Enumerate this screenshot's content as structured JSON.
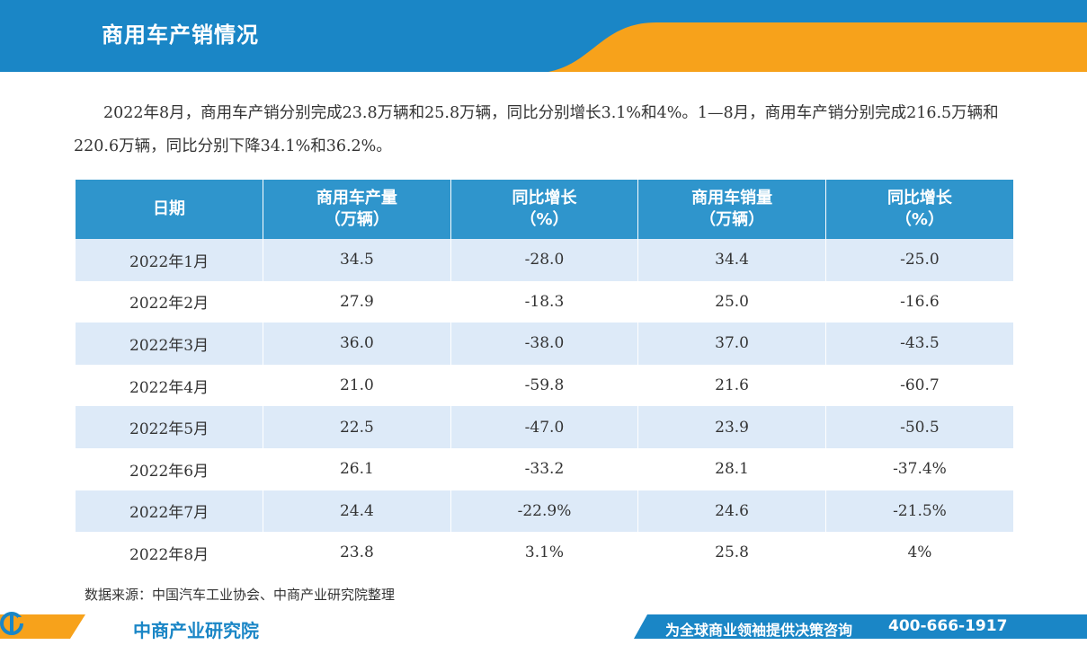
{
  "header": {
    "title": "商用车产销情况"
  },
  "intro": "2022年8月，商用车产销分别完成23.8万辆和25.8万辆，同比分别增长3.1%和4%。1—8月，商用车产销分别完成216.5万辆和220.6万辆，同比分别下降34.1%和36.2%。",
  "table": {
    "headers": [
      {
        "line1": "日期",
        "line2": ""
      },
      {
        "line1": "商用车产量",
        "line2": "（万辆）"
      },
      {
        "line1": "同比增长",
        "line2": "（%）"
      },
      {
        "line1": "商用车销量",
        "line2": "（万辆）"
      },
      {
        "line1": "同比增长",
        "line2": "（%）"
      }
    ],
    "rows": [
      [
        "2022年1月",
        "34.5",
        "-28.0",
        "34.4",
        "-25.0"
      ],
      [
        "2022年2月",
        "27.9",
        "-18.3",
        "25.0",
        "-16.6"
      ],
      [
        "2022年3月",
        "36.0",
        "-38.0",
        "37.0",
        "-43.5"
      ],
      [
        "2022年4月",
        "21.0",
        "-59.8",
        "21.6",
        "-60.7"
      ],
      [
        "2022年5月",
        "22.5",
        "-47.0",
        "23.9",
        "-50.5"
      ],
      [
        "2022年6月",
        "26.1",
        "-33.2",
        "28.1",
        "-37.4%"
      ],
      [
        "2022年7月",
        "24.4",
        "-22.9%",
        "24.6",
        "-21.5%"
      ],
      [
        "2022年8月",
        "23.8",
        "3.1%",
        "25.8",
        "4%"
      ]
    ]
  },
  "source": "数据来源：中国汽车工业协会、中商产业研究院整理",
  "footer": {
    "logo_text": "中商产业研究院",
    "slogan": "为全球商业领袖提供决策咨询",
    "phone": "400-666-1917"
  },
  "colors": {
    "primary_blue": "#1a86c6",
    "header_blue": "#2f95cc",
    "accent_orange": "#f7a21b",
    "row_stripe": "#ddeaf8"
  }
}
